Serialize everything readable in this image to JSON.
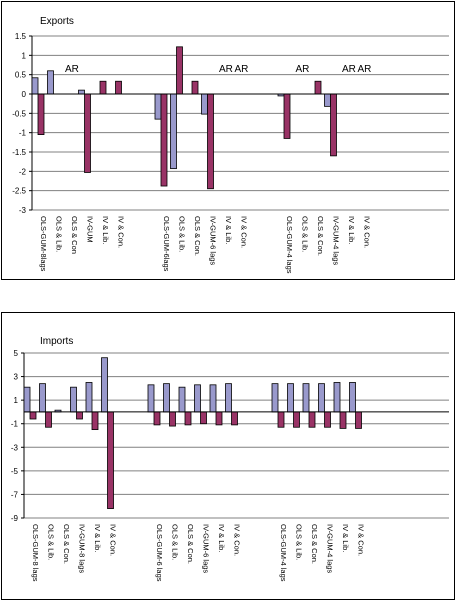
{
  "colors": {
    "series_a": "#9999cc",
    "series_b": "#993366",
    "grid": "#808080",
    "axis": "#000000"
  },
  "chart_data": [
    {
      "type": "bar",
      "title": "Exports",
      "ylim": [
        -3,
        1.5
      ],
      "yticks": [
        "1.5",
        "1",
        "0.5",
        "0",
        "-0.5",
        "-1",
        "-1.5",
        "-2",
        "-2.5",
        "-3"
      ],
      "grid": true,
      "categories": [
        "OLS-GUM-8lags",
        "OLS & Lib.",
        "OLS & Con",
        "IV-GUM",
        "IV & Lib.",
        "IV & Con.",
        "OLS-GUM-6lags",
        "OLS & Lib.",
        "OLS & Con.",
        "IV-GUM-6 lags",
        "IV & Lib.",
        "IV & Con.",
        "OLS-GUM-4 lags",
        "OLS & Lib.",
        "OLS & Con.",
        "IV-GUM-4 lags",
        "IV & Lib.",
        "IV & Con."
      ],
      "series": [
        {
          "values": [
            0.42,
            0.6,
            null,
            0.1,
            null,
            null,
            -0.65,
            -1.93,
            null,
            -0.52,
            null,
            null,
            -0.05,
            null,
            null,
            -0.32,
            null,
            null
          ]
        },
        {
          "values": [
            -1.05,
            null,
            null,
            -2.03,
            0.33,
            0.33,
            -2.38,
            1.22,
            0.33,
            -2.45,
            null,
            null,
            -1.15,
            null,
            0.33,
            -1.6,
            null,
            null
          ]
        }
      ],
      "annotations": [
        {
          "text": "AR",
          "category_index": 2
        },
        {
          "text": "AR",
          "category_index": 10
        },
        {
          "text": "AR",
          "category_index": 11
        },
        {
          "text": "AR",
          "category_index": 13
        },
        {
          "text": "AR",
          "category_index": 16
        },
        {
          "text": "AR",
          "category_index": 17
        }
      ]
    },
    {
      "type": "bar",
      "title": "Imports",
      "ylim": [
        -9,
        5
      ],
      "yticks": [
        "5",
        "3",
        "1",
        "-1",
        "-3",
        "-5",
        "-7",
        "-9"
      ],
      "grid": true,
      "categories": [
        "OLS-GUM-8 lags",
        "OLS & Lib.",
        "OLS & Con.",
        "IV-GUM-8 lags",
        "IV & Lib.",
        "IV & Con.",
        "OLS-GUM-6 lags",
        "OLS & Lib.",
        "OLS & Con.",
        "IV-GUM-6 lags",
        "IV & Lib.",
        "IV & Con.",
        "OLS-GUM-4 lags",
        "OLS & Lib.",
        "OLS & Con.",
        "IV-GUM-4 lags",
        "IV & Lib.",
        "IV & Con."
      ],
      "series": [
        {
          "values": [
            2.1,
            2.4,
            0.15,
            2.1,
            2.5,
            4.6,
            2.3,
            2.4,
            2.1,
            2.3,
            2.3,
            2.4,
            2.4,
            2.4,
            2.4,
            2.4,
            2.5,
            2.5
          ]
        },
        {
          "values": [
            -0.6,
            -1.3,
            null,
            -0.6,
            -1.5,
            -8.2,
            -1.1,
            -1.2,
            -1.1,
            -1.0,
            -1.1,
            -1.1,
            -1.3,
            -1.3,
            -1.3,
            -1.3,
            -1.4,
            -1.4
          ]
        }
      ]
    }
  ]
}
